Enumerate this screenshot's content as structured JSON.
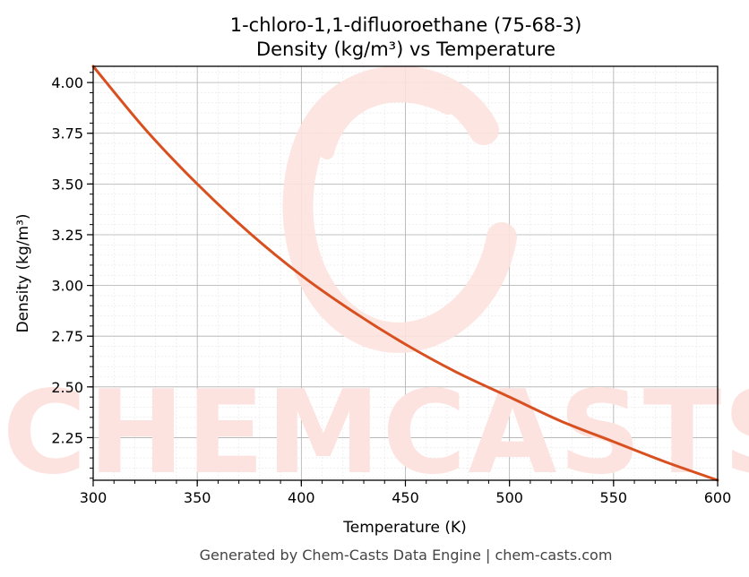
{
  "chart_data": {
    "type": "line",
    "title_line1": "1-chloro-1,1-difluoroethane (75-68-3)",
    "title_line2": "Density (kg/m³) vs Temperature",
    "xlabel": "Temperature (K)",
    "ylabel": "Density (kg/m³)",
    "xlim": [
      300,
      600
    ],
    "ylim": [
      2.04,
      4.08
    ],
    "x_ticks": [
      300,
      350,
      400,
      450,
      500,
      550,
      600
    ],
    "y_ticks": [
      2.25,
      2.5,
      2.75,
      3.0,
      3.25,
      3.5,
      3.75,
      4.0
    ],
    "grid": true,
    "line_color": "#d95020",
    "series": [
      {
        "x": [
          300,
          325,
          350,
          375,
          400,
          425,
          450,
          475,
          500,
          525,
          550,
          575,
          600
        ],
        "y": [
          4.08,
          3.77,
          3.5,
          3.26,
          3.05,
          2.87,
          2.71,
          2.57,
          2.45,
          2.33,
          2.23,
          2.13,
          2.04
        ]
      }
    ]
  },
  "watermark": {
    "text": "CHEMCASTS",
    "color": "#fde3df"
  },
  "footer": "Generated by Chem-Casts Data Engine | chem-casts.com"
}
